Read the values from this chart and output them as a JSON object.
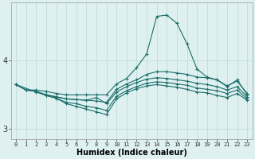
{
  "title": "",
  "xlabel": "Humidex (Indice chaleur)",
  "bg_color": "#dff0f0",
  "grid_color": "#b8d8d8",
  "line_color": "#1a6e6a",
  "x_ticks": [
    0,
    1,
    2,
    3,
    4,
    5,
    6,
    7,
    8,
    9,
    10,
    11,
    12,
    13,
    14,
    15,
    16,
    17,
    18,
    19,
    20,
    21,
    22,
    23
  ],
  "ylim": [
    2.85,
    4.85
  ],
  "yticks": [
    3,
    4
  ],
  "line1": {
    "x": [
      0,
      1,
      2,
      3,
      4,
      5,
      6,
      7,
      8,
      9,
      10,
      11,
      12,
      13,
      14,
      15,
      16,
      17,
      18,
      19,
      20,
      21,
      22,
      23
    ],
    "y": [
      3.65,
      3.57,
      3.57,
      3.55,
      3.52,
      3.5,
      3.5,
      3.5,
      3.5,
      3.5,
      3.66,
      3.74,
      3.9,
      4.1,
      4.65,
      4.67,
      4.55,
      4.25,
      3.88,
      3.76,
      3.72,
      3.62,
      3.72,
      3.5
    ]
  },
  "line2": {
    "x": [
      0,
      1,
      2,
      3,
      4,
      5,
      6,
      7,
      8,
      9,
      10,
      11,
      12,
      13,
      14,
      15,
      16,
      17,
      18,
      19,
      20,
      21,
      22,
      23
    ],
    "y": [
      3.65,
      3.57,
      3.55,
      3.5,
      3.47,
      3.44,
      3.43,
      3.42,
      3.41,
      3.39,
      3.58,
      3.66,
      3.72,
      3.8,
      3.84,
      3.84,
      3.82,
      3.8,
      3.76,
      3.75,
      3.72,
      3.63,
      3.7,
      3.52
    ]
  },
  "line3": {
    "x": [
      0,
      1,
      2,
      3,
      4,
      5,
      6,
      7,
      8,
      9,
      10,
      11,
      12,
      13,
      14,
      15,
      16,
      17,
      18,
      19,
      20,
      21,
      22,
      23
    ],
    "y": [
      3.65,
      3.57,
      3.55,
      3.5,
      3.47,
      3.44,
      3.43,
      3.42,
      3.46,
      3.37,
      3.54,
      3.62,
      3.68,
      3.73,
      3.75,
      3.74,
      3.72,
      3.7,
      3.67,
      3.65,
      3.62,
      3.57,
      3.62,
      3.47
    ]
  },
  "line4": {
    "x": [
      0,
      2,
      3,
      4,
      5,
      6,
      7,
      8,
      9,
      10,
      11,
      12,
      13,
      14,
      15,
      16,
      17,
      18,
      19,
      20,
      21,
      22,
      23
    ],
    "y": [
      3.65,
      3.54,
      3.49,
      3.45,
      3.39,
      3.37,
      3.33,
      3.31,
      3.27,
      3.48,
      3.56,
      3.62,
      3.67,
      3.69,
      3.68,
      3.66,
      3.64,
      3.6,
      3.58,
      3.56,
      3.52,
      3.57,
      3.44
    ]
  },
  "line5": {
    "x": [
      3,
      4,
      5,
      6,
      7,
      8,
      9,
      10,
      11,
      12,
      13,
      14,
      15,
      16,
      17,
      18,
      19,
      20,
      21,
      22,
      23
    ],
    "y": [
      3.49,
      3.45,
      3.37,
      3.33,
      3.29,
      3.25,
      3.21,
      3.44,
      3.53,
      3.59,
      3.63,
      3.65,
      3.63,
      3.61,
      3.58,
      3.54,
      3.53,
      3.49,
      3.46,
      3.52,
      3.42
    ]
  }
}
